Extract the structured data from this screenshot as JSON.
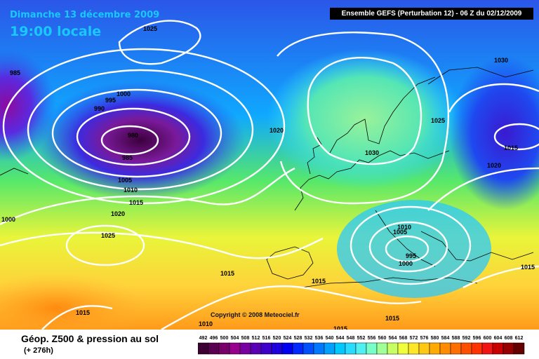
{
  "header": {
    "date": "Dimanche 13 décembre 2009",
    "local_time": "19:00 locale",
    "run": "Ensemble GEFS (Perturbation 12)  -  06 Z du 02/12/2009"
  },
  "footer": {
    "product": "Géop. Z500 & pression au sol",
    "lead_time": "(+ 276h)",
    "copyright": "Copyright © 2008 Meteociel.fr"
  },
  "isobar_labels": [
    "1025",
    "985",
    "1000",
    "995",
    "990",
    "980",
    "985",
    "1005",
    "1010",
    "1015",
    "1020",
    "1025",
    "1000",
    "1020",
    "1030",
    "1025",
    "1030",
    "1015",
    "1020",
    "1010",
    "1005",
    "995",
    "1000",
    "1015",
    "1015",
    "1015",
    "1015",
    "1010",
    "1015",
    "1015"
  ],
  "legend": {
    "values": [
      "492",
      "496",
      "500",
      "504",
      "508",
      "512",
      "516",
      "520",
      "524",
      "528",
      "532",
      "536",
      "540",
      "544",
      "548",
      "552",
      "556",
      "560",
      "564",
      "568",
      "572",
      "576",
      "580",
      "584",
      "588",
      "592",
      "596",
      "600",
      "604",
      "608",
      "612"
    ],
    "colors": [
      "#3c0032",
      "#5a0050",
      "#780069",
      "#96008c",
      "#7800a0",
      "#5a00b4",
      "#3c00c8",
      "#1e00dc",
      "#0000f0",
      "#0028ff",
      "#0050ff",
      "#0078ff",
      "#00a0ff",
      "#00c8ff",
      "#28dcff",
      "#50f0f0",
      "#78ffc8",
      "#a0ff96",
      "#c8ff64",
      "#f0ff3c",
      "#ffe628",
      "#ffc814",
      "#ffaa00",
      "#ff8c00",
      "#ff6e00",
      "#ff5000",
      "#ff3200",
      "#f01414",
      "#c80000",
      "#960000",
      "#640000"
    ]
  }
}
